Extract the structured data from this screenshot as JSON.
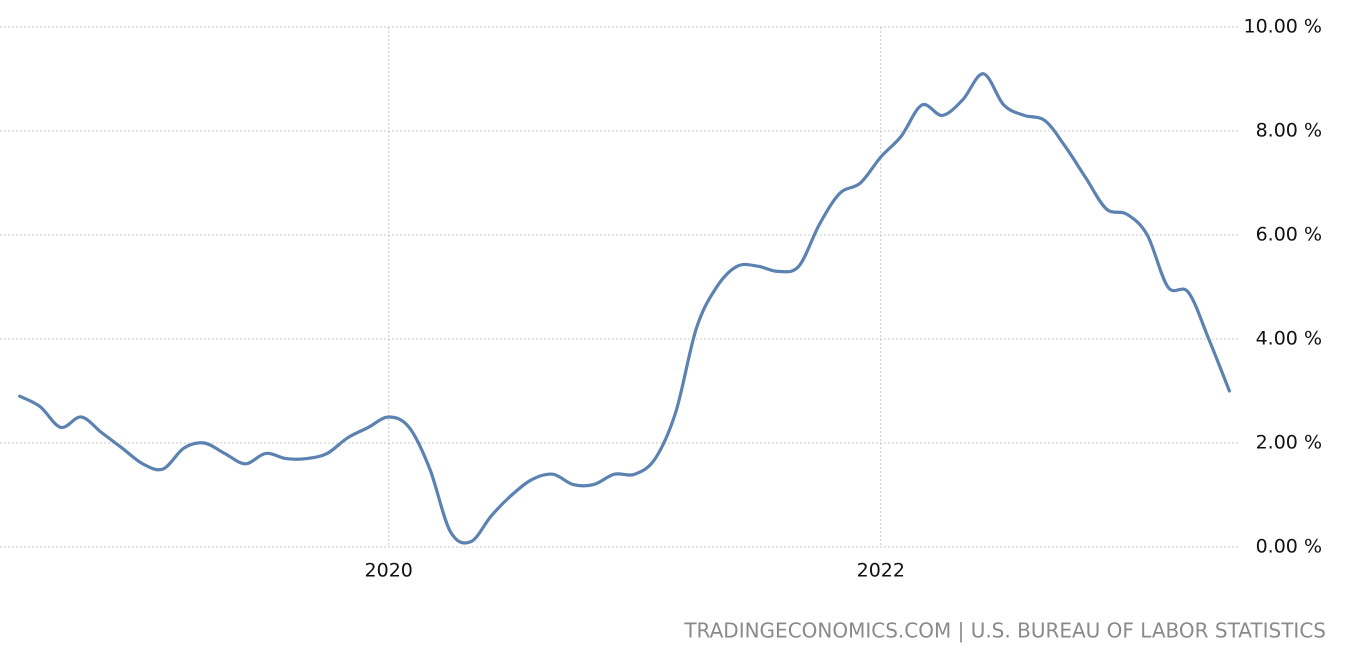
{
  "chart_data": {
    "type": "line",
    "source": "TRADINGECONOMICS.COM | U.S. BUREAU OF LABOR STATISTICS",
    "x": [
      2018.5,
      2018.583,
      2018.667,
      2018.75,
      2018.833,
      2018.917,
      2019,
      2019.083,
      2019.167,
      2019.25,
      2019.333,
      2019.417,
      2019.5,
      2019.583,
      2019.667,
      2019.75,
      2019.833,
      2019.917,
      2020,
      2020.083,
      2020.167,
      2020.25,
      2020.333,
      2020.417,
      2020.5,
      2020.583,
      2020.667,
      2020.75,
      2020.833,
      2020.917,
      2021,
      2021.083,
      2021.167,
      2021.25,
      2021.333,
      2021.417,
      2021.5,
      2021.583,
      2021.667,
      2021.75,
      2021.833,
      2021.917,
      2022,
      2022.083,
      2022.167,
      2022.25,
      2022.333,
      2022.417,
      2022.5,
      2022.583,
      2022.667,
      2022.75,
      2022.833,
      2022.917,
      2023,
      2023.083,
      2023.167,
      2023.25,
      2023.333,
      2023.417
    ],
    "series": [
      {
        "color": "#5b82b0",
        "values": [
          2.9,
          2.7,
          2.3,
          2.5,
          2.2,
          1.9,
          1.6,
          1.5,
          1.9,
          2.0,
          1.8,
          1.6,
          1.8,
          1.7,
          1.7,
          1.8,
          2.1,
          2.3,
          2.5,
          2.3,
          1.5,
          0.3,
          0.1,
          0.6,
          1.0,
          1.3,
          1.4,
          1.2,
          1.2,
          1.4,
          1.4,
          1.7,
          2.6,
          4.2,
          5.0,
          5.4,
          5.4,
          5.3,
          5.4,
          6.2,
          6.8,
          7.0,
          7.5,
          7.9,
          8.5,
          8.3,
          8.6,
          9.1,
          8.5,
          8.3,
          8.2,
          7.7,
          7.1,
          6.5,
          6.4,
          6.0,
          5.0,
          4.9,
          4.0,
          3.0
        ]
      }
    ],
    "xlim": [
      2018.42,
      2023.46
    ],
    "xticks": [
      2020,
      2022
    ],
    "ylim": [
      0,
      10
    ],
    "yticks": [
      {
        "value": 0,
        "label": "0.00 %"
      },
      {
        "value": 2,
        "label": "2.00 %"
      },
      {
        "value": 4,
        "label": "4.00 %"
      },
      {
        "value": 6,
        "label": "6.00 %"
      },
      {
        "value": 8,
        "label": "8.00 %"
      },
      {
        "value": 10,
        "label": "10.00 %"
      }
    ],
    "grid": true
  }
}
